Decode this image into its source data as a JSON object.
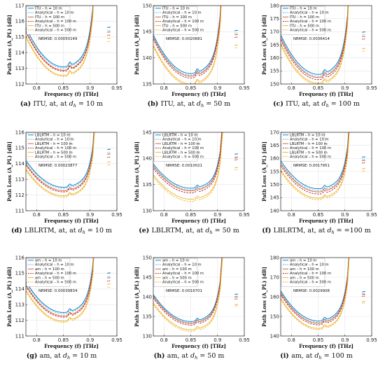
{
  "chart_data": [
    {
      "id": "a",
      "type": "line",
      "caption": {
        "label": "(a)",
        "text": "ITU, at",
        "dh": "10 m"
      },
      "ylim": [
        112,
        117
      ],
      "yticks": [
        112,
        113,
        114,
        115,
        116,
        117
      ],
      "base": 113.1,
      "offsets": [
        0,
        -0.08,
        -0.22,
        -0.28,
        -0.55,
        -0.62
      ],
      "amp": 4.55,
      "legend": [
        "ITU – h = 10 m",
        "Analytical – h = 10 m",
        "ITU – h = 100 m",
        "Analytical – h = 100 m",
        "ITU – h = 500 m",
        "Analytical – h = 500 m"
      ],
      "nrmse": "NRMSE: 0.00050149",
      "right_vals": [
        115.6,
        115.4,
        115.3,
        115.1,
        114.9,
        114.7
      ]
    },
    {
      "id": "b",
      "type": "line",
      "caption": {
        "label": "(b)",
        "text": "ITU, at",
        "dh": "50 m"
      },
      "ylim": [
        135,
        150
      ],
      "yticks": [
        135,
        140,
        145,
        150
      ],
      "base": 136.5,
      "offsets": [
        0.5,
        0.2,
        0,
        -0.35,
        -1.5,
        -1.8
      ],
      "amp": 13.5,
      "legend": [
        "ITU – h = 10 m",
        "Analytical – h = 10 m",
        "ITU – h = 100 m",
        "Analytical – h = 100 m",
        "ITU – h = 500 m",
        "Analytical – h = 500 m"
      ],
      "nrmse": "NRMSE: 0.0020681",
      "right_vals": [
        145.2,
        144.7,
        144.4,
        143.9,
        142.4,
        141.9
      ]
    },
    {
      "id": "c",
      "type": "line",
      "caption": {
        "label": "(c)",
        "text": "ITU, at",
        "dh": "100 m"
      },
      "ylim": [
        150,
        180
      ],
      "yticks": [
        150,
        155,
        160,
        165,
        170,
        175,
        180
      ],
      "base": 152.5,
      "offsets": [
        1.2,
        0.5,
        0,
        -0.8,
        -2.2,
        -2.8
      ],
      "amp": 27.5,
      "legend": [
        "ITU – h = 10 m",
        "Analytical – h = 10 m",
        "ITU – h = 100 m",
        "Analytical – h = 100 m",
        "ITU – h = 500 m",
        "Analytical – h = 500 m"
      ],
      "nrmse": "NRMSE: 0.0036414",
      "right_vals": [
        169.8,
        168.8,
        168.1,
        167.1,
        163.5,
        162.5
      ]
    },
    {
      "id": "d",
      "type": "line",
      "caption": {
        "label": "(d)",
        "text": "LBLRTM, at",
        "dh": "10 m"
      },
      "ylim": [
        111,
        116
      ],
      "yticks": [
        111,
        112,
        113,
        114,
        115,
        116
      ],
      "base": 112.5,
      "offsets": [
        0,
        -0.08,
        -0.22,
        -0.3,
        -0.55,
        -0.63
      ],
      "amp": 3.1,
      "legend": [
        "LBLRTM – h = 10 m",
        "Analytical – h = 10 m",
        "LBLRTM – h = 100 m",
        "Analytical – h = 100 m",
        "LBLRTM – h = 500 m",
        "Analytical – h = 500 m"
      ],
      "nrmse": "NRMSE: 0.00023877",
      "right_vals": [
        114.9,
        114.7,
        114.6,
        114.4,
        114.1,
        113.9
      ]
    },
    {
      "id": "e",
      "type": "line",
      "caption": {
        "label": "(e)",
        "text": "LBLRTM, at",
        "dh": "50 m"
      },
      "ylim": [
        130,
        145
      ],
      "yticks": [
        130,
        135,
        140,
        145
      ],
      "base": 133.8,
      "offsets": [
        0.5,
        0.2,
        0,
        -0.4,
        -1.6,
        -2.0
      ],
      "amp": 8.5,
      "legend": [
        "LBLRTM – h = 10 m",
        "Analytical – h = 10 m",
        "LBLRTM – h = 100 m",
        "Analytical – h = 100 m",
        "LBLRTM – h = 500 m",
        "Analytical – h = 500 m"
      ],
      "nrmse": "NRMSE: 0.0010021",
      "right_vals": [
        140.8,
        140.3,
        140.1,
        139.7,
        138.2,
        137.8
      ]
    },
    {
      "id": "f",
      "type": "line",
      "caption": {
        "label": "(f)",
        "text": "LBLRTM, at",
        "dh": "=100 m"
      },
      "ylim": [
        140,
        170
      ],
      "yticks": [
        140,
        145,
        150,
        155,
        160,
        165,
        170
      ],
      "base": 147.2,
      "offsets": [
        1.2,
        0.5,
        0,
        -0.8,
        -2.4,
        -3.0
      ],
      "amp": 19.5,
      "legend": [
        "LBLRTM – h = 10 m",
        "Analytical – h = 10 m",
        "LBLRTM – h = 100 m",
        "Analytical – h = 100 m",
        "LBLRTM – h = 500 m",
        "Analytical – h = 500 m"
      ],
      "nrmse": "NRMSE: 0.0017951",
      "right_vals": [
        160.5,
        159.6,
        159.1,
        158.2,
        156.0,
        155.1
      ]
    },
    {
      "id": "g",
      "type": "line",
      "caption": {
        "label": "(g)",
        "text": "am",
        "dh": "10 m"
      },
      "ylim": [
        111,
        116
      ],
      "yticks": [
        111,
        112,
        113,
        114,
        115,
        116
      ],
      "base": 112.5,
      "offsets": [
        0,
        -0.08,
        -0.22,
        -0.3,
        -0.55,
        -0.63
      ],
      "amp": 3.6,
      "legend": [
        "am – h = 10 m",
        "Analytical – h = 10 m",
        "am – h = 100 m",
        "Analytical – h = 100 m",
        "am – h = 500 m",
        "Analytical – h = 500 m"
      ],
      "nrmse": "NRMSE: 0.00039834",
      "right_vals": [
        115.0,
        114.8,
        114.7,
        114.5,
        114.3,
        114.1
      ]
    },
    {
      "id": "h",
      "type": "line",
      "caption": {
        "label": "(h)",
        "text": "am",
        "dh": "50 m"
      },
      "ylim": [
        130,
        150
      ],
      "yticks": [
        130,
        135,
        140,
        145,
        150
      ],
      "base": 133.2,
      "offsets": [
        0.5,
        0.2,
        0,
        -0.4,
        -1.6,
        -2.0
      ],
      "amp": 12.5,
      "legend": [
        "am – h = 10 m",
        "Analytical – h = 10 m",
        "am – h = 100 m",
        "Analytical – h = 100 m",
        "am – h = 500 m",
        "Analytical – h = 500 m"
      ],
      "nrmse": "NRMSE: 0.0016701",
      "right_vals": [
        140.6,
        140.1,
        139.9,
        139.4,
        138.0,
        137.6
      ]
    },
    {
      "id": "i",
      "type": "line",
      "caption": {
        "label": "(i)",
        "text": "am",
        "dh": "100 m"
      },
      "ylim": [
        140,
        180
      ],
      "yticks": [
        140,
        150,
        160,
        170,
        180
      ],
      "base": 146.5,
      "offsets": [
        1.2,
        0.5,
        0,
        -0.8,
        -2.6,
        -3.2
      ],
      "amp": 28.0,
      "legend": [
        "am – h = 10 m",
        "Analytical – h = 10 m",
        "am – h = 100 m",
        "Analytical – h = 100 m",
        "am – h = 500 m",
        "Analytical – h = 500 m"
      ],
      "nrmse": "NRMSE: 0.0029908",
      "right_vals": [
        162.5,
        161.6,
        161.1,
        160.2,
        157.5,
        156.7
      ]
    }
  ],
  "xlim": [
    0.78,
    0.95
  ],
  "xticks": [
    0.8,
    0.85,
    0.9,
    0.95
  ],
  "xlabel": "Frequency (f) [THz]",
  "ylabel": "Path Loss (A_PL) [dB]",
  "series_colors": [
    "#0072BD",
    "#4DBEEE",
    "#D95319",
    "#A2142F",
    "#EDB120",
    "#EDB120"
  ],
  "dashed": [
    false,
    true,
    false,
    true,
    false,
    true
  ]
}
